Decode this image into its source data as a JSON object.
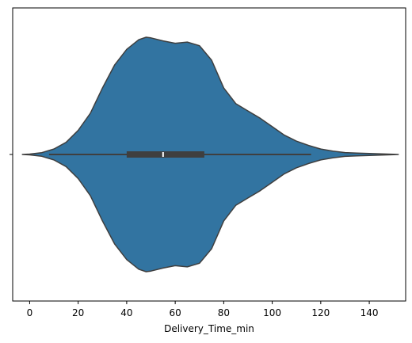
{
  "chart_data": {
    "type": "violin",
    "title": "",
    "xlabel": "Delivery_Time_min",
    "ylabel": "",
    "xlim": [
      -7,
      155
    ],
    "xticks": [
      0,
      20,
      40,
      60,
      80,
      100,
      120,
      140
    ],
    "ytick_labels": [
      ""
    ],
    "grid": false,
    "legend": "none",
    "colors": {
      "fill": "#3274a1",
      "edge": "#3f3f3f",
      "median": "#ffffff"
    },
    "density_profile": {
      "x": [
        -3,
        0,
        5,
        10,
        15,
        20,
        25,
        30,
        35,
        40,
        45,
        48,
        50,
        55,
        60,
        65,
        70,
        75,
        80,
        85,
        90,
        95,
        100,
        105,
        110,
        115,
        120,
        125,
        130,
        135,
        140,
        145,
        150,
        152
      ],
      "density": [
        0.0,
        0.003,
        0.015,
        0.045,
        0.1,
        0.2,
        0.34,
        0.55,
        0.74,
        0.87,
        0.95,
        0.97,
        0.965,
        0.94,
        0.92,
        0.93,
        0.9,
        0.78,
        0.55,
        0.42,
        0.36,
        0.3,
        0.23,
        0.16,
        0.11,
        0.075,
        0.045,
        0.028,
        0.016,
        0.011,
        0.008,
        0.005,
        0.002,
        0.0
      ]
    },
    "box": {
      "whisker_low": 8,
      "q1": 40,
      "median": 55,
      "q3": 72,
      "whisker_high": 116
    }
  }
}
